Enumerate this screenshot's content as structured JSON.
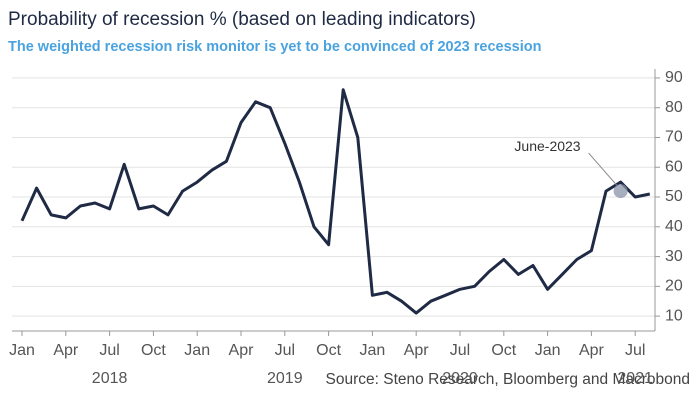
{
  "chart_data": {
    "type": "line",
    "title": "Probability of recession % (based on leading indicators)",
    "subtitle": "The weighted recession risk monitor is yet to be convinced of 2023 recession",
    "source": "Source: Steno Research, Bloomberg and Macrobond",
    "annotation": {
      "text": "June-2023",
      "x": "2021-06",
      "y": 52
    },
    "color": "#1f2a44",
    "x": [
      "2018-01",
      "2018-02",
      "2018-03",
      "2018-04",
      "2018-05",
      "2018-06",
      "2018-07",
      "2018-08",
      "2018-09",
      "2018-10",
      "2018-11",
      "2018-12",
      "2019-01",
      "2019-02",
      "2019-03",
      "2019-04",
      "2019-05",
      "2019-06",
      "2019-07",
      "2019-08",
      "2019-09",
      "2019-10",
      "2019-11",
      "2019-12",
      "2020-01",
      "2020-02",
      "2020-03",
      "2020-04",
      "2020-05",
      "2020-06",
      "2020-07",
      "2020-08",
      "2020-09",
      "2020-10",
      "2020-11",
      "2020-12",
      "2021-01",
      "2021-02",
      "2021-03",
      "2021-04",
      "2021-05",
      "2021-06",
      "2021-07",
      "2021-08"
    ],
    "values": [
      42,
      53,
      44,
      43,
      47,
      48,
      46,
      61,
      46,
      47,
      44,
      52,
      55,
      59,
      62,
      75,
      82,
      80,
      68,
      55,
      40,
      34,
      86,
      70,
      17,
      18,
      15,
      11,
      15,
      17,
      19,
      20,
      25,
      29,
      24,
      27,
      19,
      24,
      29,
      32,
      52,
      55,
      50,
      51
    ],
    "ylim": [
      5,
      93
    ],
    "yticks": [
      10,
      20,
      30,
      40,
      50,
      60,
      70,
      80,
      90
    ],
    "xticks": [
      {
        "value": "2018-01",
        "label": "Jan"
      },
      {
        "value": "2018-04",
        "label": "Apr"
      },
      {
        "value": "2018-07",
        "label": "Jul"
      },
      {
        "value": "2018-10",
        "label": "Oct"
      },
      {
        "value": "2019-01",
        "label": "Jan"
      },
      {
        "value": "2019-04",
        "label": "Apr"
      },
      {
        "value": "2019-07",
        "label": "Jul"
      },
      {
        "value": "2019-10",
        "label": "Oct"
      },
      {
        "value": "2020-01",
        "label": "Jan"
      },
      {
        "value": "2020-04",
        "label": "Apr"
      },
      {
        "value": "2020-07",
        "label": "Jul"
      },
      {
        "value": "2020-10",
        "label": "Oct"
      },
      {
        "value": "2021-01",
        "label": "Jan"
      },
      {
        "value": "2021-04",
        "label": "Apr"
      },
      {
        "value": "2021-07",
        "label": "Jul"
      }
    ],
    "year_labels": [
      {
        "value": "2018-07",
        "label": "2018"
      },
      {
        "value": "2019-07",
        "label": "2019"
      },
      {
        "value": "2020-07",
        "label": "2020"
      },
      {
        "value": "2021-07",
        "label": "2021"
      }
    ],
    "grid": true
  }
}
